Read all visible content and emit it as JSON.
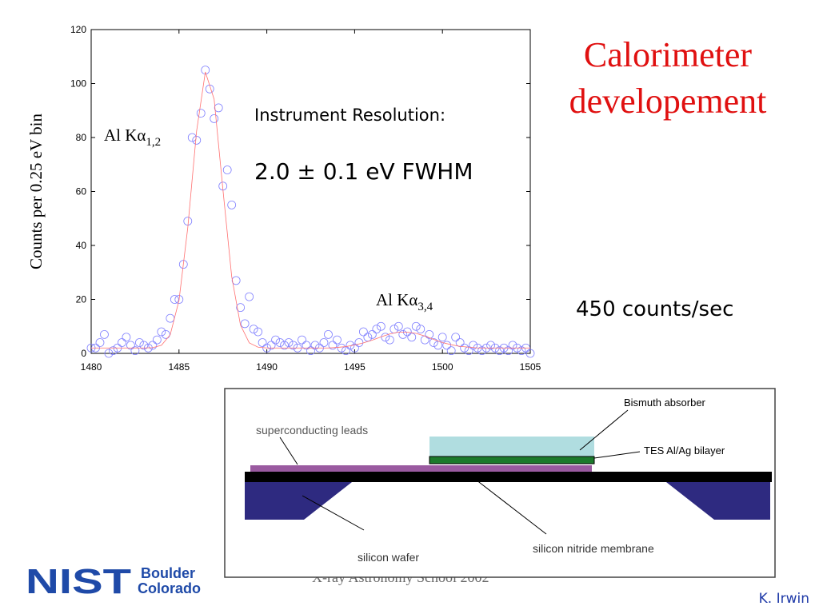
{
  "title": "Calorimeter developement",
  "chart_data": {
    "type": "scatter",
    "y_label": "Counts per 0.25 eV bin",
    "xlim": [
      1480,
      1505
    ],
    "ylim": [
      0,
      120
    ],
    "xticks": [
      1480,
      1485,
      1490,
      1495,
      1500,
      1505
    ],
    "yticks": [
      0,
      20,
      40,
      60,
      80,
      100,
      120
    ],
    "annotations": [
      {
        "text": "Al Kα",
        "subscript": "1,2"
      },
      {
        "text": "Al Kα",
        "subscript": "3,4"
      }
    ],
    "series": [
      {
        "type": "scatter",
        "color": "#8080ff",
        "x": [
          1480,
          1480.25,
          1480.5,
          1480.75,
          1481,
          1481.25,
          1481.5,
          1481.75,
          1482,
          1482.25,
          1482.5,
          1482.75,
          1483,
          1483.25,
          1483.5,
          1483.75,
          1484,
          1484.25,
          1484.5,
          1484.75,
          1485,
          1485.25,
          1485.5,
          1485.75,
          1486,
          1486.25,
          1486.5,
          1486.75,
          1487,
          1487.25,
          1487.5,
          1487.75,
          1488,
          1488.25,
          1488.5,
          1488.75,
          1489,
          1489.25,
          1489.5,
          1489.75,
          1490,
          1490.25,
          1490.5,
          1490.75,
          1491,
          1491.25,
          1491.5,
          1491.75,
          1492,
          1492.25,
          1492.5,
          1492.75,
          1493,
          1493.25,
          1493.5,
          1493.75,
          1494,
          1494.25,
          1494.5,
          1494.75,
          1495,
          1495.25,
          1495.5,
          1495.75,
          1496,
          1496.25,
          1496.5,
          1496.75,
          1497,
          1497.25,
          1497.5,
          1497.75,
          1498,
          1498.25,
          1498.5,
          1498.75,
          1499,
          1499.25,
          1499.5,
          1499.75,
          1500,
          1500.25,
          1500.5,
          1500.75,
          1501,
          1501.25,
          1501.5,
          1501.75,
          1502,
          1502.25,
          1502.5,
          1502.75,
          1503,
          1503.25,
          1503.5,
          1503.75,
          1504,
          1504.25,
          1504.5,
          1504.75,
          1505
        ],
        "values": [
          2,
          2,
          4,
          7,
          0,
          1,
          2,
          4,
          6,
          3,
          1,
          4,
          3,
          2,
          3,
          5,
          8,
          7,
          13,
          20,
          20,
          33,
          49,
          80,
          79,
          89,
          105,
          98,
          87,
          91,
          62,
          68,
          55,
          27,
          17,
          11,
          21,
          9,
          8,
          4,
          2,
          3,
          5,
          4,
          3,
          4,
          3,
          2,
          5,
          3,
          1,
          3,
          2,
          4,
          7,
          3,
          5,
          2,
          1,
          3,
          2,
          4,
          8,
          6,
          7,
          9,
          10,
          6,
          5,
          9,
          10,
          7,
          8,
          6,
          10,
          9,
          5,
          7,
          4,
          3,
          6,
          3,
          1,
          6,
          4,
          2,
          1,
          3,
          2,
          1,
          2,
          3,
          2,
          1,
          2,
          1,
          3,
          2,
          1,
          2,
          0
        ]
      },
      {
        "type": "line",
        "color": "#ff7070",
        "x": [
          1480,
          1480.5,
          1481,
          1481.5,
          1482,
          1482.5,
          1483,
          1483.5,
          1484,
          1484.5,
          1485,
          1485.5,
          1486,
          1486.5,
          1487,
          1487.5,
          1488,
          1488.5,
          1489,
          1489.5,
          1490,
          1490.5,
          1491,
          1491.5,
          1492,
          1492.5,
          1493,
          1493.5,
          1494,
          1494.5,
          1495,
          1495.5,
          1496,
          1496.5,
          1497,
          1497.5,
          1498,
          1498.5,
          1499,
          1499.5,
          1500,
          1500.5,
          1501,
          1501.5,
          1502,
          1502.5,
          1503,
          1503.5,
          1504,
          1504.5,
          1505
        ],
        "values": [
          2,
          2,
          2,
          2,
          2,
          2,
          2,
          2.1,
          3,
          6.9,
          19.6,
          46.6,
          82.3,
          104.3,
          94.2,
          60.8,
          28.5,
          10.5,
          3.9,
          2.3,
          2,
          2,
          2,
          2,
          2,
          2,
          2,
          2,
          2.2,
          2.5,
          3.1,
          3.9,
          4.9,
          6.1,
          7.2,
          7.9,
          7.9,
          7.4,
          6.4,
          5.2,
          4,
          3.2,
          2.6,
          2.3,
          2,
          2,
          2,
          2,
          2,
          2,
          2
        ]
      }
    ]
  },
  "resolution": {
    "label": "Instrument Resolution:",
    "value": "2.0 ± 0.1 eV FWHM"
  },
  "rate": "450 counts/sec",
  "diagram": {
    "bismuth": "Bismuth absorber",
    "tes": "TES Al/Ag bilayer",
    "leads": "superconducting leads",
    "wafer": "silicon wafer",
    "membrane": "silicon nitride membrane"
  },
  "footer": "X-ray Astronomy School 2002",
  "logo": {
    "mark": "NIST",
    "line1": "Boulder",
    "line2": "Colorado"
  },
  "author": "K. Irwin"
}
